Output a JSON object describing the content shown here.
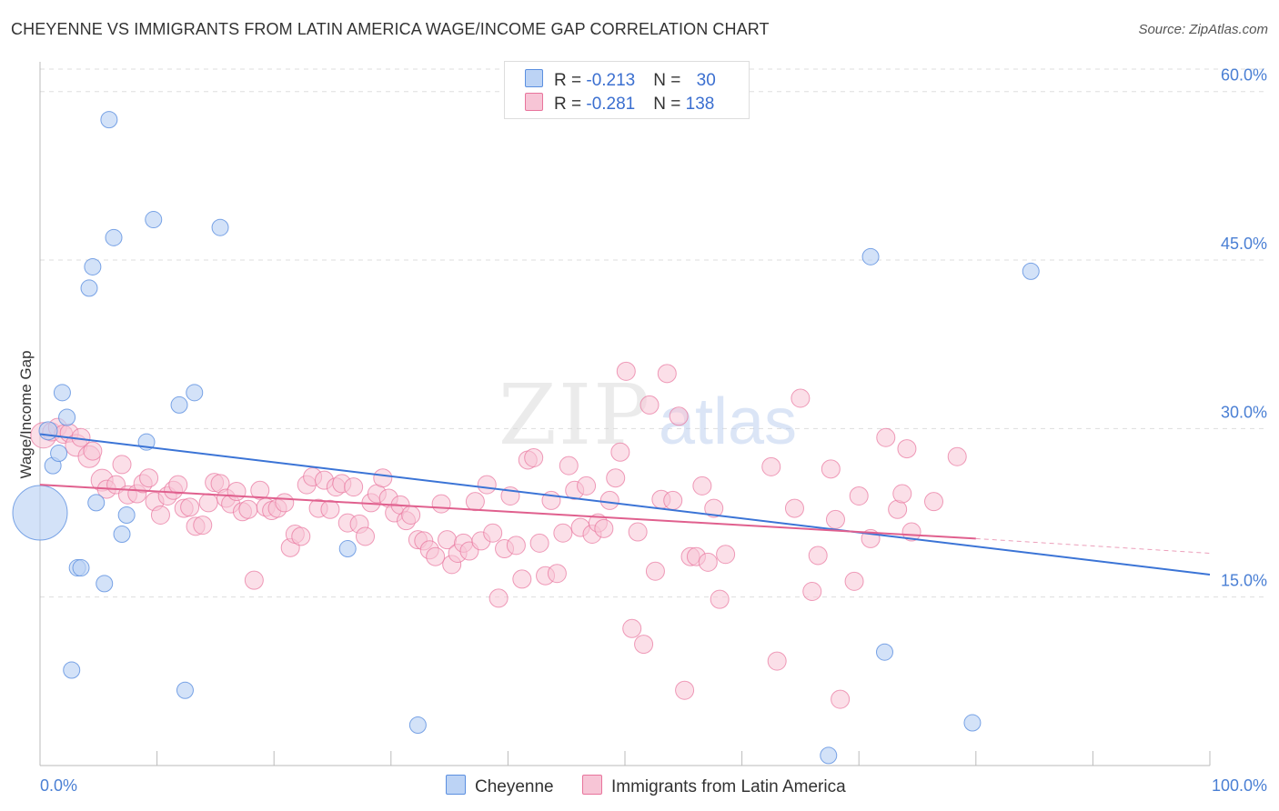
{
  "title": "CHEYENNE VS IMMIGRANTS FROM LATIN AMERICA WAGE/INCOME GAP CORRELATION CHART",
  "source": "Source: ZipAtlas.com",
  "watermark": {
    "zip": "ZIP",
    "atlas": "atlas"
  },
  "legend": {
    "rows": [
      {
        "r_label": "R = ",
        "r_value": "-0.213",
        "n_label": "N = ",
        "n_value": "30"
      },
      {
        "r_label": "R = ",
        "r_value": "-0.281",
        "n_label": "N = ",
        "n_value": "138"
      }
    ]
  },
  "bottom_legend": {
    "series1": "Cheyenne",
    "series2": "Immigrants from Latin America"
  },
  "chart_data": {
    "type": "scatter",
    "ylabel": "Wage/Income Gap",
    "xlim": [
      0,
      100
    ],
    "ylim": [
      0,
      62
    ],
    "x_tick_labels": [
      "0.0%",
      "100.0%"
    ],
    "y_ticks": [
      15,
      30,
      45,
      60
    ],
    "y_tick_labels": [
      "15.0%",
      "30.0%",
      "45.0%",
      "60.0%"
    ],
    "colors": {
      "series1": "#5b8fe0",
      "series1_fill": "#bcd3f5",
      "series2": "#e8749c",
      "series2_fill": "#f7c5d6"
    },
    "series": [
      {
        "name": "Cheyenne",
        "trend": {
          "x0": 0,
          "y0": 29.5,
          "x1": 100,
          "y1": 17.0
        },
        "points": [
          [
            0.0,
            22.5,
            30
          ],
          [
            0.7,
            29.8,
            10
          ],
          [
            1.1,
            26.7,
            9
          ],
          [
            1.6,
            27.8,
            9
          ],
          [
            1.9,
            33.2,
            9
          ],
          [
            2.3,
            31.0,
            9
          ],
          [
            2.7,
            8.5,
            9
          ],
          [
            3.2,
            17.6,
            9
          ],
          [
            3.5,
            17.6,
            9
          ],
          [
            4.2,
            42.5,
            9
          ],
          [
            4.5,
            44.4,
            9
          ],
          [
            4.8,
            23.4,
            9
          ],
          [
            5.5,
            16.2,
            9
          ],
          [
            5.9,
            57.5,
            9
          ],
          [
            6.3,
            47.0,
            9
          ],
          [
            7.0,
            20.6,
            9
          ],
          [
            7.4,
            22.3,
            9
          ],
          [
            9.1,
            28.8,
            9
          ],
          [
            9.7,
            48.6,
            9
          ],
          [
            11.9,
            32.1,
            9
          ],
          [
            12.4,
            6.7,
            9
          ],
          [
            13.2,
            33.2,
            9
          ],
          [
            15.4,
            47.9,
            9
          ],
          [
            26.3,
            19.3,
            9
          ],
          [
            32.3,
            3.6,
            9
          ],
          [
            67.4,
            0.9,
            9
          ],
          [
            71.0,
            45.3,
            9
          ],
          [
            72.2,
            10.1,
            9
          ],
          [
            79.7,
            3.8,
            9
          ],
          [
            84.7,
            44.0,
            9
          ]
        ]
      },
      {
        "name": "Immigrants from Latin America",
        "trend": {
          "x0": 0,
          "y0": 25.0,
          "x1": 80,
          "y1": 20.2
        },
        "trend_dashed": {
          "x0": 80,
          "y0": 20.2,
          "x1": 100,
          "y1": 18.9
        },
        "points": [
          [
            0.3,
            29.4,
            14
          ],
          [
            1.0,
            29.7,
            10
          ],
          [
            1.5,
            30.1,
            10
          ],
          [
            2.0,
            29.5,
            10
          ],
          [
            2.5,
            29.6,
            10
          ],
          [
            3.1,
            28.5,
            12
          ],
          [
            3.5,
            29.2,
            10
          ],
          [
            4.2,
            27.5,
            12
          ],
          [
            4.5,
            28.0,
            10
          ],
          [
            5.3,
            25.4,
            12
          ],
          [
            5.7,
            24.6,
            10
          ],
          [
            6.5,
            25.0,
            10
          ],
          [
            7.0,
            26.8,
            10
          ],
          [
            7.5,
            24.1,
            10
          ],
          [
            8.3,
            24.2,
            10
          ],
          [
            8.8,
            25.1,
            10
          ],
          [
            9.3,
            25.6,
            10
          ],
          [
            9.8,
            23.5,
            10
          ],
          [
            10.3,
            22.3,
            10
          ],
          [
            10.9,
            24.0,
            10
          ],
          [
            11.4,
            24.5,
            10
          ],
          [
            11.8,
            25.0,
            10
          ],
          [
            12.3,
            22.9,
            10
          ],
          [
            12.8,
            23.0,
            10
          ],
          [
            13.3,
            21.3,
            10
          ],
          [
            13.9,
            21.4,
            10
          ],
          [
            14.4,
            23.4,
            10
          ],
          [
            14.9,
            25.2,
            10
          ],
          [
            15.4,
            25.1,
            10
          ],
          [
            15.9,
            23.8,
            10
          ],
          [
            16.3,
            23.3,
            10
          ],
          [
            16.8,
            24.4,
            10
          ],
          [
            17.3,
            22.6,
            10
          ],
          [
            17.8,
            22.8,
            10
          ],
          [
            18.3,
            16.5,
            10
          ],
          [
            18.8,
            24.5,
            10
          ],
          [
            19.3,
            23.0,
            10
          ],
          [
            19.8,
            22.7,
            10
          ],
          [
            20.3,
            22.9,
            10
          ],
          [
            20.9,
            23.4,
            10
          ],
          [
            21.4,
            19.4,
            10
          ],
          [
            21.8,
            20.6,
            10
          ],
          [
            22.3,
            20.4,
            10
          ],
          [
            22.8,
            25.0,
            10
          ],
          [
            23.3,
            25.7,
            10
          ],
          [
            23.8,
            22.9,
            10
          ],
          [
            24.3,
            25.4,
            10
          ],
          [
            24.8,
            22.8,
            10
          ],
          [
            25.3,
            24.8,
            10
          ],
          [
            25.8,
            25.1,
            10
          ],
          [
            26.3,
            21.6,
            10
          ],
          [
            26.8,
            24.8,
            10
          ],
          [
            27.3,
            21.5,
            10
          ],
          [
            27.8,
            20.4,
            10
          ],
          [
            28.3,
            23.4,
            10
          ],
          [
            28.8,
            24.2,
            10
          ],
          [
            29.3,
            25.6,
            10
          ],
          [
            29.8,
            23.8,
            10
          ],
          [
            30.3,
            22.5,
            10
          ],
          [
            30.8,
            23.2,
            10
          ],
          [
            31.3,
            21.8,
            10
          ],
          [
            31.7,
            22.3,
            10
          ],
          [
            32.3,
            20.1,
            10
          ],
          [
            32.8,
            20.0,
            10
          ],
          [
            33.3,
            19.2,
            10
          ],
          [
            33.8,
            18.6,
            10
          ],
          [
            34.3,
            23.3,
            10
          ],
          [
            34.8,
            20.1,
            10
          ],
          [
            35.2,
            17.9,
            10
          ],
          [
            35.7,
            18.9,
            10
          ],
          [
            36.2,
            19.8,
            10
          ],
          [
            36.7,
            19.1,
            10
          ],
          [
            37.2,
            23.5,
            10
          ],
          [
            37.7,
            20.0,
            10
          ],
          [
            38.2,
            25.0,
            10
          ],
          [
            38.7,
            20.7,
            10
          ],
          [
            39.2,
            14.9,
            10
          ],
          [
            39.7,
            19.3,
            10
          ],
          [
            40.2,
            24.0,
            10
          ],
          [
            40.7,
            19.6,
            10
          ],
          [
            41.2,
            16.6,
            10
          ],
          [
            41.7,
            27.2,
            10
          ],
          [
            42.2,
            27.4,
            10
          ],
          [
            42.7,
            19.8,
            10
          ],
          [
            43.2,
            16.9,
            10
          ],
          [
            43.7,
            23.6,
            10
          ],
          [
            44.2,
            17.1,
            10
          ],
          [
            44.7,
            20.7,
            10
          ],
          [
            45.2,
            26.7,
            10
          ],
          [
            45.7,
            24.5,
            10
          ],
          [
            46.2,
            21.2,
            10
          ],
          [
            46.7,
            24.9,
            10
          ],
          [
            47.2,
            20.6,
            10
          ],
          [
            47.7,
            21.6,
            10
          ],
          [
            48.2,
            21.1,
            10
          ],
          [
            48.7,
            23.6,
            10
          ],
          [
            49.2,
            25.6,
            10
          ],
          [
            49.6,
            27.9,
            10
          ],
          [
            50.1,
            35.1,
            10
          ],
          [
            50.6,
            12.2,
            10
          ],
          [
            51.1,
            20.8,
            10
          ],
          [
            51.6,
            10.8,
            10
          ],
          [
            52.1,
            32.1,
            10
          ],
          [
            52.6,
            17.3,
            10
          ],
          [
            53.1,
            23.7,
            10
          ],
          [
            53.6,
            34.9,
            10
          ],
          [
            54.1,
            23.6,
            10
          ],
          [
            54.6,
            31.1,
            10
          ],
          [
            55.1,
            6.7,
            10
          ],
          [
            55.6,
            18.6,
            10
          ],
          [
            56.1,
            18.6,
            10
          ],
          [
            56.6,
            24.9,
            10
          ],
          [
            57.1,
            18.1,
            10
          ],
          [
            57.6,
            22.9,
            10
          ],
          [
            58.1,
            14.8,
            10
          ],
          [
            58.6,
            18.8,
            10
          ],
          [
            62.5,
            26.6,
            10
          ],
          [
            63.0,
            9.3,
            10
          ],
          [
            64.5,
            22.9,
            10
          ],
          [
            65.0,
            32.7,
            10
          ],
          [
            66.0,
            15.5,
            10
          ],
          [
            66.5,
            18.7,
            10
          ],
          [
            67.6,
            26.4,
            10
          ],
          [
            68.0,
            21.9,
            10
          ],
          [
            68.4,
            5.9,
            10
          ],
          [
            69.6,
            16.4,
            10
          ],
          [
            70.0,
            24.0,
            10
          ],
          [
            71.0,
            20.2,
            10
          ],
          [
            72.3,
            29.2,
            10
          ],
          [
            73.3,
            22.8,
            10
          ],
          [
            73.7,
            24.2,
            10
          ],
          [
            74.1,
            28.2,
            10
          ],
          [
            74.5,
            20.8,
            10
          ],
          [
            76.4,
            23.5,
            10
          ],
          [
            78.4,
            27.5,
            10
          ]
        ]
      }
    ]
  }
}
